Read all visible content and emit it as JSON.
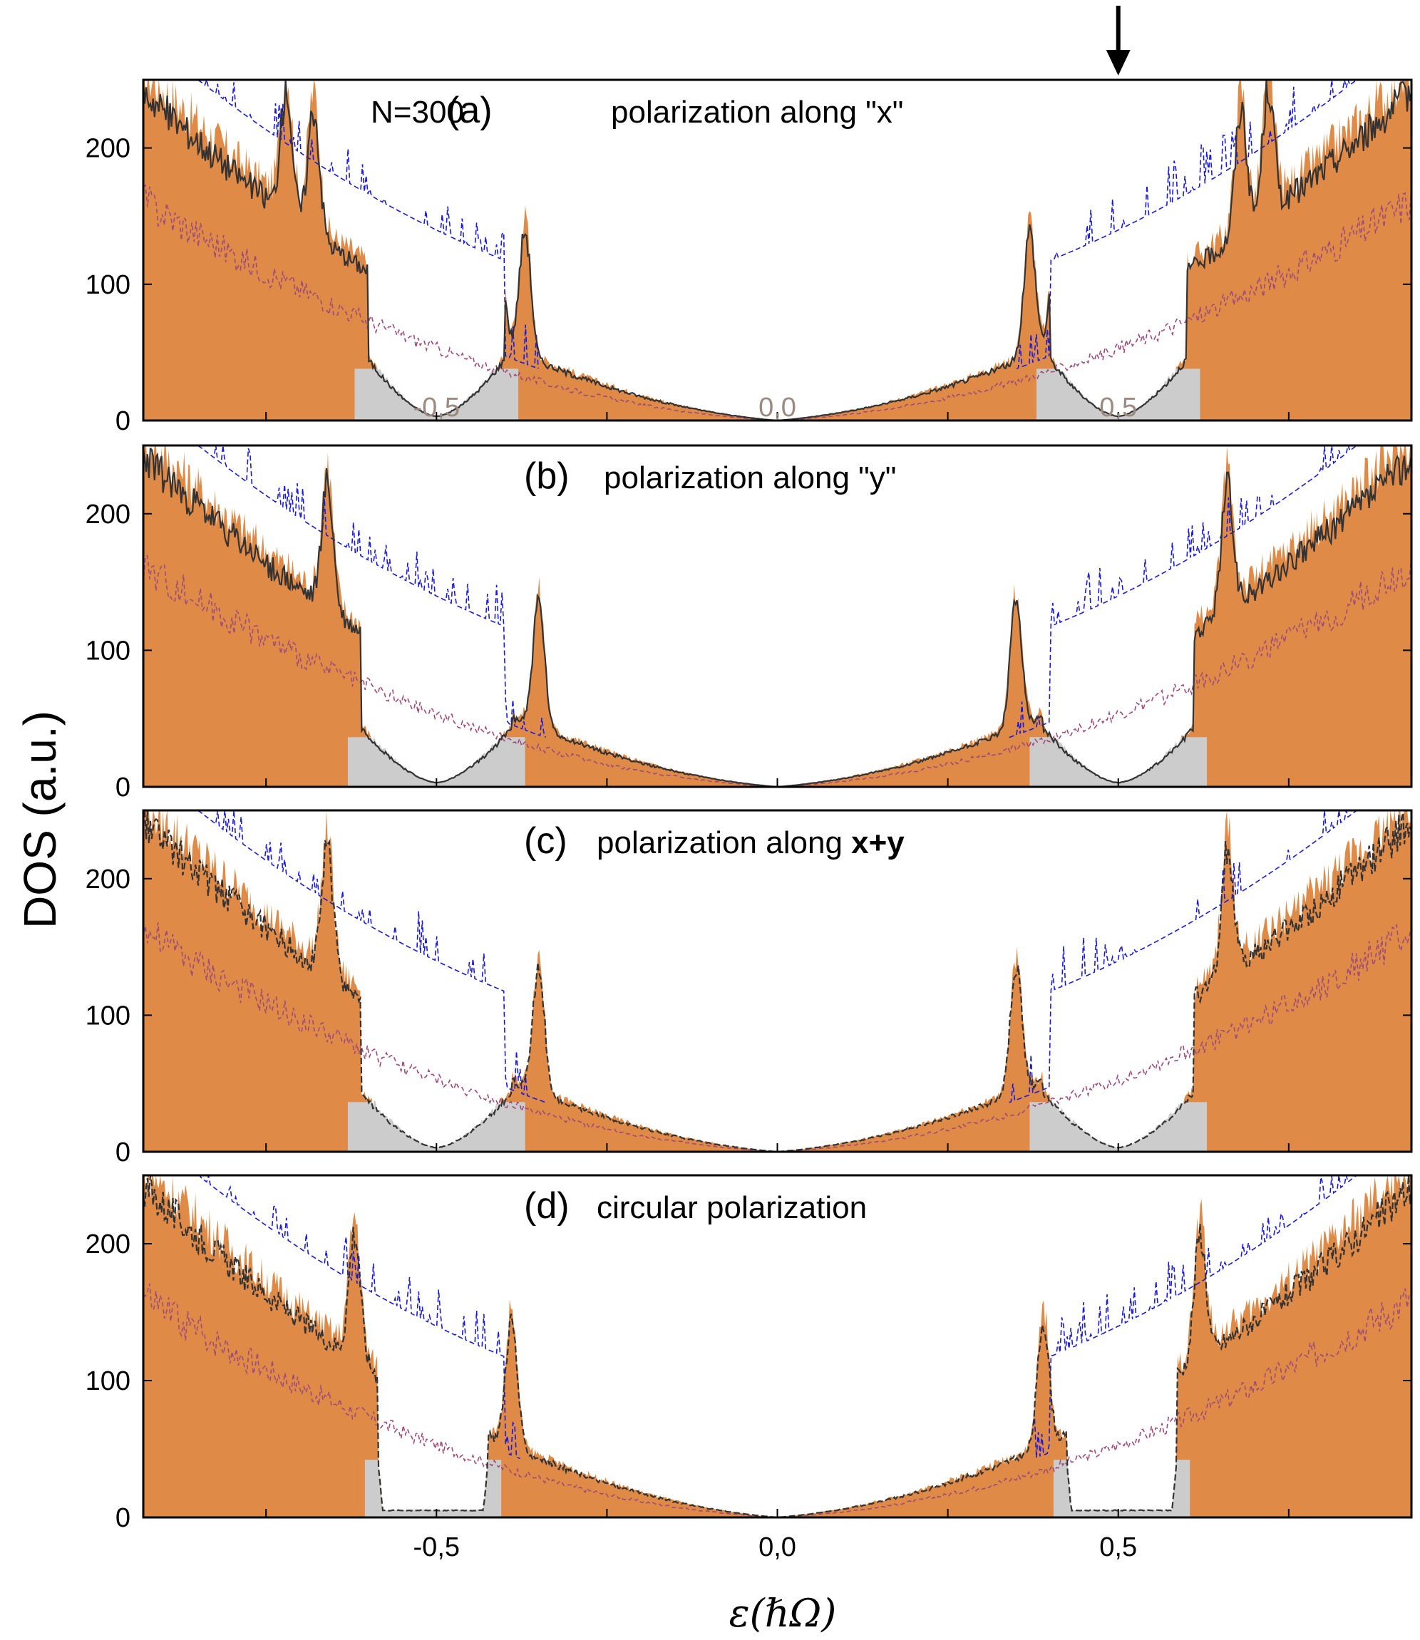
{
  "chart_data": [
    {
      "type": "area",
      "panel": "a",
      "title_letter": "(a)",
      "title_text": "polarization along \"x\"",
      "annotation": "N=300",
      "marker": "down-arrow",
      "marker_x": 0.5,
      "xlim": [
        -0.93,
        0.93
      ],
      "ylim": [
        0,
        250
      ],
      "yticks": [
        0,
        100,
        200
      ],
      "ytick_labels": [
        "0",
        "100",
        "200"
      ],
      "inner_xticks": [
        -0.5,
        0.0,
        0.5
      ],
      "inner_xtick_labels": [
        "-0,5",
        "0,0",
        "0,5"
      ],
      "gap_center": 0.5,
      "gap_halfwidth": 0.1,
      "gap_shape": "v",
      "inner_peaks": [
        0.37,
        0.41
      ],
      "outer_peaks": [
        0.68,
        0.72
      ],
      "shading": "grey gap regions, orange elsewhere",
      "series": [
        "orange filled DOS (N=300)",
        "black solid DOS",
        "blue dashed reference",
        "purple dashed reference"
      ]
    },
    {
      "type": "area",
      "panel": "b",
      "title_letter": "(b)",
      "title_text": "polarization along \"y\"",
      "xlim": [
        -0.93,
        0.93
      ],
      "ylim": [
        0,
        250
      ],
      "yticks": [
        0,
        100,
        200
      ],
      "ytick_labels": [
        "0",
        "100",
        "200"
      ],
      "gap_center": 0.5,
      "gap_halfwidth": 0.11,
      "gap_shape": "v",
      "inner_peaks": [
        0.35
      ],
      "outer_peaks": [
        0.66
      ],
      "shading": "grey gap regions, orange elsewhere"
    },
    {
      "type": "area",
      "panel": "c",
      "title_letter": "(c)",
      "title_text": "polarization along ",
      "title_bold": "x+y",
      "xlim": [
        -0.93,
        0.93
      ],
      "ylim": [
        0,
        250
      ],
      "yticks": [
        0,
        100,
        200
      ],
      "ytick_labels": [
        "0",
        "100",
        "200"
      ],
      "gap_center": 0.5,
      "gap_halfwidth": 0.11,
      "gap_shape": "v",
      "inner_peaks": [
        0.35
      ],
      "outer_peaks": [
        0.66
      ],
      "shading": "grey gap regions, orange elsewhere"
    },
    {
      "type": "area",
      "panel": "d",
      "title_letter": "(d)",
      "title_text": "circular polarization",
      "xlim": [
        -0.93,
        0.93
      ],
      "ylim": [
        0,
        250
      ],
      "yticks": [
        0,
        100,
        200
      ],
      "ytick_labels": [
        "0",
        "100",
        "200"
      ],
      "xticks": [
        -0.5,
        0.0,
        0.5
      ],
      "xtick_labels": [
        "-0,5",
        "0,0",
        "0,5"
      ],
      "gap_center": 0.505,
      "gap_halfwidth": 0.08,
      "gap_shape": "flat",
      "inner_peaks": [
        0.39
      ],
      "outer_peaks": [
        0.62
      ],
      "shading": "grey gap regions, orange elsewhere"
    }
  ],
  "figure": {
    "ylabel": "DOS (a.u.)",
    "xlabel": "ε(ℏΩ)",
    "colors": {
      "orange_fill": "#e08a48",
      "grey_fill": "#cccccc",
      "black_curve": "#333333",
      "blue_dashed": "#1a1adc",
      "purple_dashed": "#a04a78",
      "frame": "#000000"
    }
  }
}
